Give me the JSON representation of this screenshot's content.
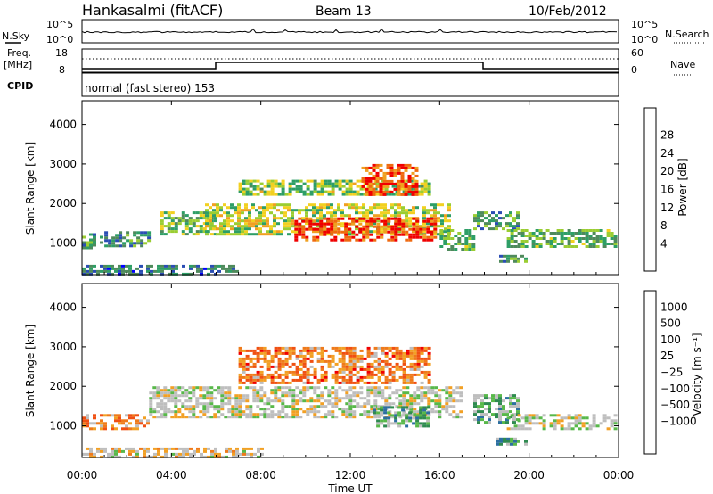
{
  "header": {
    "station": "Hankasalmi (fitACF)",
    "beam": "Beam 13",
    "date": "10/Feb/2012",
    "cpid_text": "normal (fast stereo) 153"
  },
  "left_labels": {
    "nsky": "N.Sky",
    "freq_line1": "Freq.",
    "freq_line2": "[MHz]",
    "cpid": "CPID"
  },
  "right_labels": {
    "nsearch": "N.Search",
    "nave": "Nave"
  },
  "strip_ticks": {
    "nsky_top": "10^5",
    "nsky_bottom": "10^0",
    "freq_top": "18",
    "freq_bottom": "8",
    "nave_top": "60",
    "nave_bottom": "0",
    "nsearch_top": "10^5",
    "nsearch_bottom": "10^0"
  },
  "colors": {
    "power_scale": [
      "#0000ff",
      "#2a4db4",
      "#4f8a5c",
      "#2e9e66",
      "#9acd32",
      "#f2d020",
      "#f0a020",
      "#ef6a10",
      "#f00000"
    ],
    "velocity_scale": [
      "#2a4bb4",
      "#2c6fa0",
      "#2f8a50",
      "#58b84a",
      "#bebebe",
      "#bebebe",
      "#f2a024",
      "#ef7a1a",
      "#f05012",
      "#f00000"
    ]
  },
  "chart_data": [
    {
      "type": "heatmap",
      "name": "power",
      "ylabel": "Slant Range [km]",
      "ylim": [
        200,
        4600
      ],
      "yticks": [
        "1000",
        "2000",
        "3000",
        "4000"
      ],
      "xlim": [
        0,
        24
      ],
      "colorbar_label": "Power [dB]",
      "colorbar_ticks": [
        "4",
        "8",
        "12",
        "16",
        "20",
        "24",
        "28"
      ],
      "features": [
        {
          "t0": 0.0,
          "t1": 0.9,
          "r0": 900,
          "r1": 1250,
          "level": 0.35
        },
        {
          "t0": 1.0,
          "t1": 3.0,
          "r0": 950,
          "r1": 1300,
          "level": 0.3
        },
        {
          "t0": 3.5,
          "t1": 6.0,
          "r0": 1200,
          "r1": 1800,
          "level": 0.45
        },
        {
          "t0": 5.5,
          "t1": 16.5,
          "r0": 1200,
          "r1": 2000,
          "level": 0.55
        },
        {
          "t0": 9.5,
          "t1": 15.8,
          "r0": 1100,
          "r1": 1650,
          "level": 0.9
        },
        {
          "t0": 7.0,
          "t1": 15.5,
          "r0": 2200,
          "r1": 2600,
          "level": 0.5
        },
        {
          "t0": 12.5,
          "t1": 15.0,
          "r0": 2200,
          "r1": 3000,
          "level": 0.85
        },
        {
          "t0": 0.0,
          "t1": 7.0,
          "r0": 200,
          "r1": 450,
          "level": 0.25
        },
        {
          "t0": 16.0,
          "t1": 17.5,
          "r0": 850,
          "r1": 1350,
          "level": 0.4
        },
        {
          "t0": 17.5,
          "t1": 19.5,
          "r0": 1350,
          "r1": 1800,
          "level": 0.35
        },
        {
          "t0": 19.0,
          "t1": 23.8,
          "r0": 900,
          "r1": 1350,
          "level": 0.4
        },
        {
          "t0": 18.5,
          "t1": 20.0,
          "r0": 500,
          "r1": 700,
          "level": 0.35
        }
      ]
    },
    {
      "type": "heatmap",
      "name": "velocity",
      "ylabel": "Slant Range [km]",
      "ylim": [
        200,
        4600
      ],
      "yticks": [
        "1000",
        "2000",
        "3000",
        "4000"
      ],
      "xlim": [
        0,
        24
      ],
      "xticks": [
        "00:00",
        "04:00",
        "08:00",
        "12:00",
        "16:00",
        "20:00",
        "00:00"
      ],
      "xlabel": "Time UT",
      "colorbar_label": "Velocity [m s⁻¹]",
      "colorbar_ticks": [
        "1000",
        "500",
        "100",
        "25",
        "−25",
        "−100",
        "−500",
        "−1000"
      ],
      "features": [
        {
          "t0": 0.0,
          "t1": 3.0,
          "r0": 900,
          "r1": 1300,
          "level": 0.7
        },
        {
          "t0": 3.0,
          "t1": 17.0,
          "r0": 1200,
          "r1": 2000,
          "level": 0.5
        },
        {
          "t0": 7.0,
          "t1": 15.5,
          "r0": 2100,
          "r1": 3000,
          "level": 0.75
        },
        {
          "t0": 13.0,
          "t1": 15.5,
          "r0": 1000,
          "r1": 1500,
          "level": 0.3
        },
        {
          "t0": 17.5,
          "t1": 19.5,
          "r0": 1100,
          "r1": 1800,
          "level": 0.35
        },
        {
          "t0": 19.0,
          "t1": 23.8,
          "r0": 900,
          "r1": 1300,
          "level": 0.5
        },
        {
          "t0": 18.5,
          "t1": 20.0,
          "r0": 500,
          "r1": 700,
          "level": 0.3
        },
        {
          "t0": 0.0,
          "t1": 8.0,
          "r0": 200,
          "r1": 450,
          "level": 0.55
        }
      ]
    }
  ]
}
